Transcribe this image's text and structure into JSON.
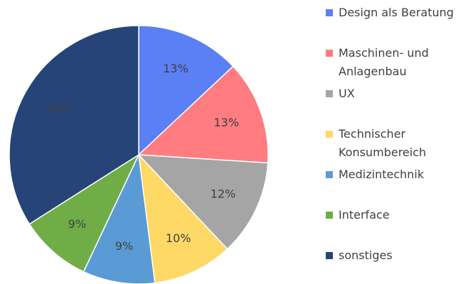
{
  "chart_data": {
    "type": "pie",
    "categories": [
      "Design als Beratung",
      "Maschinen- und Anlagenbau",
      "UX",
      "Technischer Konsumbereich",
      "Medizintechnik",
      "Interface",
      "sonstiges"
    ],
    "values": [
      13,
      13,
      12,
      10,
      9,
      9,
      34
    ],
    "value_labels": [
      "13%",
      "13%",
      "12%",
      "10%",
      "9%",
      "9%",
      "34%"
    ],
    "colors": [
      "#5b7ff5",
      "#ff7c80",
      "#a5a5a5",
      "#ffd966",
      "#5b9bd5",
      "#70ad47",
      "#264478"
    ],
    "legend": "right"
  }
}
